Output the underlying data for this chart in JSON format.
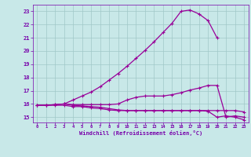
{
  "bg_color": "#c8e8e8",
  "grid_color": "#a0c8c8",
  "line_color": "#990099",
  "xlabel": "Windchill (Refroidissement éolien,°C)",
  "xlabel_color": "#7700aa",
  "tick_color": "#7700aa",
  "xlim": [
    -0.5,
    23.5
  ],
  "ylim": [
    14.6,
    23.5
  ],
  "yticks": [
    15,
    16,
    17,
    18,
    19,
    20,
    21,
    22,
    23
  ],
  "xticks": [
    0,
    1,
    2,
    3,
    4,
    5,
    6,
    7,
    8,
    9,
    10,
    11,
    12,
    13,
    14,
    15,
    16,
    17,
    18,
    19,
    20,
    21,
    22,
    23
  ],
  "line1_x": [
    0,
    1,
    2,
    3,
    4,
    5,
    6,
    7,
    8,
    9,
    10,
    11,
    12,
    13,
    14,
    15,
    16,
    17,
    18,
    19,
    20,
    21,
    22,
    23
  ],
  "line1_y": [
    15.9,
    15.9,
    15.9,
    15.9,
    15.8,
    15.8,
    15.7,
    15.65,
    15.55,
    15.5,
    15.5,
    15.5,
    15.5,
    15.5,
    15.5,
    15.5,
    15.5,
    15.5,
    15.5,
    15.45,
    15.0,
    15.1,
    15.0,
    14.8
  ],
  "line2_x": [
    0,
    1,
    2,
    3,
    4,
    5,
    6,
    7,
    8,
    9,
    10,
    11,
    12,
    13,
    14,
    15,
    16,
    17,
    18,
    19,
    20,
    21,
    22,
    23
  ],
  "line2_y": [
    15.9,
    15.9,
    15.95,
    16.0,
    15.95,
    15.95,
    15.95,
    15.95,
    15.95,
    16.0,
    16.3,
    16.5,
    16.6,
    16.6,
    16.6,
    16.7,
    16.85,
    17.05,
    17.2,
    17.4,
    17.4,
    15.0,
    15.1,
    15.0
  ],
  "line3_x": [
    0,
    1,
    2,
    3,
    4,
    5,
    6,
    7,
    8,
    9,
    10,
    11,
    12,
    13,
    14,
    15,
    16,
    17,
    18,
    19,
    20
  ],
  "line3_y": [
    15.9,
    15.9,
    15.95,
    16.0,
    16.3,
    16.6,
    16.9,
    17.3,
    17.8,
    18.3,
    18.85,
    19.45,
    20.05,
    20.7,
    21.4,
    22.1,
    23.0,
    23.1,
    22.8,
    22.3,
    21.0
  ],
  "line4_x": [
    3,
    4,
    5,
    6,
    7,
    8,
    9,
    10,
    11,
    12,
    13,
    14,
    15,
    16,
    17,
    18,
    19,
    20,
    21,
    22,
    23
  ],
  "line4_y": [
    16.0,
    15.9,
    15.85,
    15.8,
    15.75,
    15.65,
    15.55,
    15.5,
    15.5,
    15.5,
    15.5,
    15.5,
    15.5,
    15.5,
    15.5,
    15.5,
    15.5,
    15.5,
    15.5,
    15.5,
    15.4
  ]
}
